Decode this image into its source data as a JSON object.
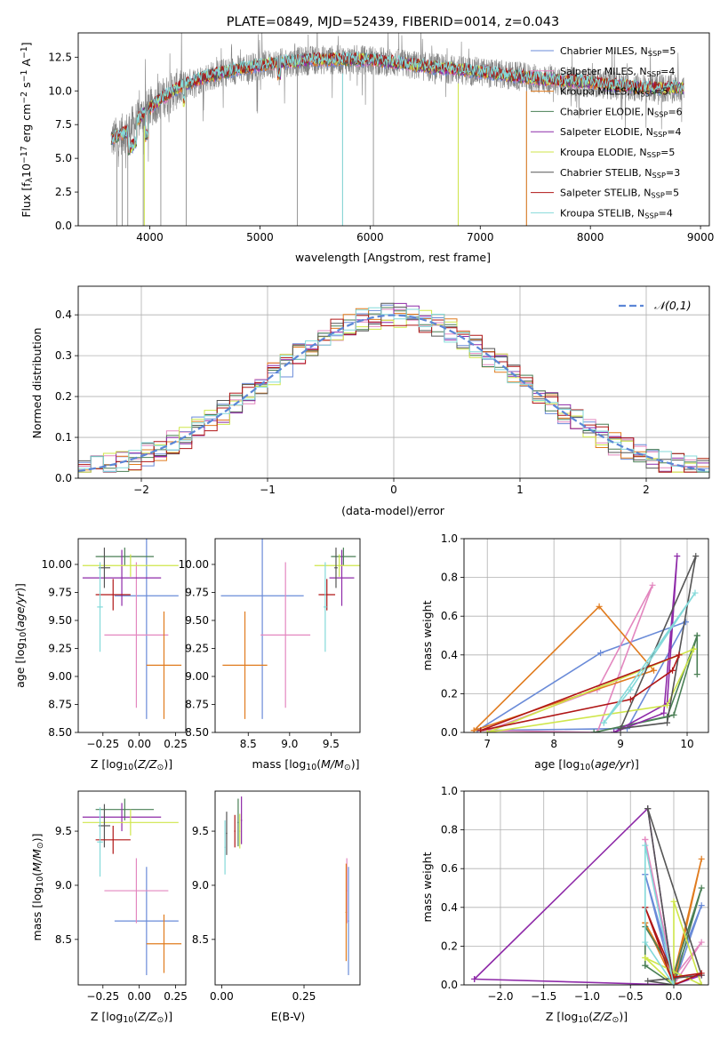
{
  "title": "PLATE=0849, MJD=52439, FIBERID=0014, z=0.043",
  "colors": {
    "Chabrier MILES": "#6a8bd8",
    "Salpeter MILES": "#e387bf",
    "Kroupa MILES": "#e07b1e",
    "Chabrier ELODIE": "#4a7f55",
    "Salpeter ELODIE": "#8e2aa8",
    "Kroupa ELODIE": "#cfe64a",
    "Chabrier STELIB": "#555555",
    "Salpeter STELIB": "#b01616",
    "Kroupa STELIB": "#84dada",
    "data": "#808080",
    "normal": "#5b86d6"
  },
  "chart_data": [
    {
      "id": "spectrum",
      "type": "line",
      "xlabel": "wavelength [Angstrom, rest frame]",
      "ylabel": "Flux [f",
      "xlim": [
        3350,
        9080
      ],
      "ylim": [
        0,
        14.3
      ],
      "xticks": [
        4000,
        5000,
        6000,
        7000,
        8000,
        9000
      ],
      "yticks": [
        0.0,
        2.5,
        5.0,
        7.5,
        10.0,
        12.5
      ],
      "continuum": {
        "x": [
          3650,
          3800,
          3950,
          4100,
          4300,
          4500,
          4800,
          5100,
          5500,
          6000,
          6500,
          7000,
          7500,
          8000,
          8500,
          8850
        ],
        "y": [
          6.4,
          7.0,
          8.4,
          9.4,
          10.4,
          11.0,
          11.6,
          12.0,
          12.3,
          12.3,
          11.8,
          11.4,
          10.9,
          10.6,
          10.2,
          10.2
        ]
      },
      "legend": [
        {
          "name": "Chabrier MILES",
          "nssp": 5
        },
        {
          "name": "Salpeter MILES",
          "nssp": 4
        },
        {
          "name": "Kroupa MILES",
          "nssp": 5
        },
        {
          "name": "Chabrier ELODIE",
          "nssp": 6
        },
        {
          "name": "Salpeter ELODIE",
          "nssp": 4
        },
        {
          "name": "Kroupa ELODIE",
          "nssp": 5
        },
        {
          "name": "Chabrier STELIB",
          "nssp": 3
        },
        {
          "name": "Salpeter STELIB",
          "nssp": 5
        },
        {
          "name": "Kroupa STELIB",
          "nssp": 4
        }
      ]
    },
    {
      "id": "residuals",
      "type": "line",
      "xlabel": "(data-model)/error",
      "ylabel": "Normed distribution",
      "xlim": [
        -2.5,
        2.5
      ],
      "ylim": [
        0,
        0.47
      ],
      "xticks": [
        -2,
        -1,
        0,
        1,
        2
      ],
      "yticks": [
        0.0,
        0.1,
        0.2,
        0.3,
        0.4
      ],
      "legend": "𝒩(0,1)",
      "grid": true
    },
    {
      "id": "age-vs-Z",
      "type": "scatter",
      "xlabel": "Z [log10(Z/Z⊙)]",
      "ylabel": "age  [log10(age/yr)]",
      "xlim": [
        -0.42,
        0.32
      ],
      "ylim": [
        8.5,
        10.23
      ],
      "xticks": [
        -0.25,
        0.0,
        0.25
      ],
      "yticks": [
        8.5,
        8.75,
        9.0,
        9.25,
        9.5,
        9.75,
        10.0
      ],
      "points": [
        {
          "s": "Chabrier MILES",
          "x": 0.05,
          "y": 9.72,
          "xe": 0.22,
          "ye": 1.1
        },
        {
          "s": "Salpeter MILES",
          "x": -0.02,
          "y": 9.37,
          "xe": 0.22,
          "ye": 0.65
        },
        {
          "s": "Kroupa MILES",
          "x": 0.17,
          "y": 9.1,
          "xe": 0.12,
          "ye": 0.48
        },
        {
          "s": "Chabrier ELODIE",
          "x": -0.1,
          "y": 10.07,
          "xe": 0.2,
          "ye": 0.08
        },
        {
          "s": "Salpeter ELODIE",
          "x": -0.12,
          "y": 9.88,
          "xe": 0.27,
          "ye": 0.25
        },
        {
          "s": "Kroupa ELODIE",
          "x": -0.06,
          "y": 9.99,
          "xe": 0.33,
          "ye": 0.1
        },
        {
          "s": "Chabrier STELIB",
          "x": -0.24,
          "y": 9.97,
          "xe": 0.04,
          "ye": 0.18
        },
        {
          "s": "Salpeter STELIB",
          "x": -0.18,
          "y": 9.73,
          "xe": 0.12,
          "ye": 0.14
        },
        {
          "s": "Kroupa STELIB",
          "x": -0.27,
          "y": 9.62,
          "xe": 0.02,
          "ye": 0.4
        }
      ]
    },
    {
      "id": "age-vs-mass",
      "type": "scatter",
      "xlabel": "mass [log10(M/M⊙)]",
      "xlim": [
        8.1,
        9.85
      ],
      "ylim": [
        8.5,
        10.23
      ],
      "xticks": [
        8.5,
        9.0,
        9.5
      ],
      "yticks": [
        8.5,
        8.75,
        9.0,
        9.25,
        9.5,
        9.75,
        10.0
      ],
      "points": [
        {
          "s": "Chabrier MILES",
          "x": 8.67,
          "y": 9.72,
          "xe": 0.5,
          "ye": 1.1
        },
        {
          "s": "Salpeter MILES",
          "x": 8.95,
          "y": 9.37,
          "xe": 0.3,
          "ye": 0.65
        },
        {
          "s": "Kroupa MILES",
          "x": 8.46,
          "y": 9.1,
          "xe": 0.27,
          "ye": 0.48
        },
        {
          "s": "Chabrier ELODIE",
          "x": 9.65,
          "y": 10.07,
          "xe": 0.15,
          "ye": 0.08
        },
        {
          "s": "Salpeter ELODIE",
          "x": 9.63,
          "y": 9.88,
          "xe": 0.15,
          "ye": 0.25
        },
        {
          "s": "Kroupa ELODIE",
          "x": 9.6,
          "y": 9.99,
          "xe": 0.3,
          "ye": 0.1
        },
        {
          "s": "Chabrier STELIB",
          "x": 9.56,
          "y": 9.97,
          "xe": 0.02,
          "ye": 0.18
        },
        {
          "s": "Salpeter STELIB",
          "x": 9.45,
          "y": 9.73,
          "xe": 0.1,
          "ye": 0.14
        },
        {
          "s": "Kroupa STELIB",
          "x": 9.43,
          "y": 9.62,
          "xe": 0.02,
          "ye": 0.4
        }
      ]
    },
    {
      "id": "weight-vs-age",
      "type": "line",
      "xlabel": "age  [log10(age/yr)]",
      "ylabel": "mass weight",
      "xlim": [
        6.65,
        10.32
      ],
      "ylim": [
        0,
        1.0
      ],
      "xticks": [
        7,
        8,
        9,
        10
      ],
      "yticks": [
        0.0,
        0.2,
        0.4,
        0.6,
        0.8,
        1.0
      ],
      "grid": true,
      "series": [
        {
          "s": "Chabrier MILES",
          "x": [
            6.85,
            8.7,
            9.98,
            9.1,
            6.85
          ],
          "y": [
            0.01,
            0.41,
            0.57,
            0.02,
            0.01
          ]
        },
        {
          "s": "Salpeter MILES",
          "x": [
            7.0,
            8.65,
            9.48,
            8.65,
            7.0
          ],
          "y": [
            0.01,
            0.22,
            0.76,
            0.0,
            0.01
          ]
        },
        {
          "s": "Kroupa MILES",
          "x": [
            6.8,
            8.68,
            9.5,
            6.8
          ],
          "y": [
            0.01,
            0.65,
            0.32,
            0.01
          ]
        },
        {
          "s": "Chabrier ELODIE",
          "x": [
            8.6,
            9.7,
            10.15,
            10.15,
            10.15,
            9.8,
            8.6
          ],
          "y": [
            0.0,
            0.08,
            0.5,
            0.3,
            0.5,
            0.09,
            0.0
          ]
        },
        {
          "s": "Salpeter ELODIE",
          "x": [
            8.9,
            9.65,
            9.85,
            9.7,
            8.9
          ],
          "y": [
            0.0,
            0.1,
            0.91,
            0.15,
            0.0
          ]
        },
        {
          "s": "Kroupa ELODIE",
          "x": [
            7.0,
            9.7,
            10.1,
            10.1,
            7.0
          ],
          "y": [
            0.0,
            0.14,
            0.43,
            0.43,
            0.0
          ]
        },
        {
          "s": "Chabrier STELIB",
          "x": [
            9.0,
            9.7,
            10.13,
            9.0
          ],
          "y": [
            0.02,
            0.05,
            0.91,
            0.02
          ]
        },
        {
          "s": "Salpeter STELIB",
          "x": [
            6.9,
            9.15,
            9.78,
            9.88,
            6.9
          ],
          "y": [
            0.01,
            0.17,
            0.32,
            0.4,
            0.01
          ]
        },
        {
          "s": "Kroupa STELIB",
          "x": [
            8.75,
            9.15,
            10.12,
            8.75
          ],
          "y": [
            0.05,
            0.22,
            0.72,
            0.05
          ]
        }
      ]
    },
    {
      "id": "mass-vs-Z",
      "type": "scatter",
      "xlabel": "Z [log10(Z/Z⊙)]",
      "ylabel": "mass [log10(M/M⊙)]",
      "xlim": [
        -0.42,
        0.32
      ],
      "ylim": [
        8.08,
        9.87
      ],
      "xticks": [
        -0.25,
        0.0,
        0.25
      ],
      "yticks": [
        8.5,
        9.0,
        9.5
      ],
      "points": [
        {
          "s": "Chabrier MILES",
          "x": 0.05,
          "y": 8.67,
          "xe": 0.22,
          "ye": 0.5
        },
        {
          "s": "Salpeter MILES",
          "x": -0.02,
          "y": 8.95,
          "xe": 0.22,
          "ye": 0.3
        },
        {
          "s": "Kroupa MILES",
          "x": 0.17,
          "y": 8.46,
          "xe": 0.12,
          "ye": 0.27
        },
        {
          "s": "Chabrier ELODIE",
          "x": -0.1,
          "y": 9.7,
          "xe": 0.2,
          "ye": 0.1
        },
        {
          "s": "Salpeter ELODIE",
          "x": -0.12,
          "y": 9.63,
          "xe": 0.27,
          "ye": 0.13
        },
        {
          "s": "Kroupa ELODIE",
          "x": -0.06,
          "y": 9.58,
          "xe": 0.33,
          "ye": 0.12
        },
        {
          "s": "Chabrier STELIB",
          "x": -0.24,
          "y": 9.55,
          "xe": 0.04,
          "ye": 0.2
        },
        {
          "s": "Salpeter STELIB",
          "x": -0.18,
          "y": 9.42,
          "xe": 0.12,
          "ye": 0.13
        },
        {
          "s": "Kroupa STELIB",
          "x": -0.27,
          "y": 9.4,
          "xe": 0.02,
          "ye": 0.32
        }
      ]
    },
    {
      "id": "mass-vs-EBV",
      "type": "scatter",
      "xlabel": "E(B-V)",
      "xlim": [
        -0.02,
        0.42
      ],
      "ylim": [
        8.08,
        9.87
      ],
      "xticks": [
        0.0,
        0.25
      ],
      "yticks": [
        8.5,
        9.0,
        9.5
      ],
      "points": [
        {
          "s": "Chabrier MILES",
          "x": 0.385,
          "y": 8.67,
          "xe": 0.002,
          "ye": 0.5
        },
        {
          "s": "Salpeter MILES",
          "x": 0.38,
          "y": 8.95,
          "xe": 0.002,
          "ye": 0.3
        },
        {
          "s": "Kroupa MILES",
          "x": 0.378,
          "y": 8.75,
          "xe": 0.002,
          "ye": 0.45
        },
        {
          "s": "Chabrier ELODIE",
          "x": 0.05,
          "y": 9.58,
          "xe": 0.002,
          "ye": 0.22
        },
        {
          "s": "Salpeter ELODIE",
          "x": 0.06,
          "y": 9.6,
          "xe": 0.002,
          "ye": 0.22
        },
        {
          "s": "Kroupa ELODIE",
          "x": 0.055,
          "y": 9.5,
          "xe": 0.002,
          "ye": 0.16
        },
        {
          "s": "Chabrier STELIB",
          "x": 0.015,
          "y": 9.48,
          "xe": 0.002,
          "ye": 0.2
        },
        {
          "s": "Salpeter STELIB",
          "x": 0.04,
          "y": 9.5,
          "xe": 0.002,
          "ye": 0.15
        },
        {
          "s": "Kroupa STELIB",
          "x": 0.01,
          "y": 9.35,
          "xe": 0.002,
          "ye": 0.25
        }
      ]
    },
    {
      "id": "weight-vs-Z",
      "type": "line",
      "xlabel": "Z [log10(Z/Z⊙)]",
      "ylabel": "mass weight",
      "xlim": [
        -2.42,
        0.4
      ],
      "ylim": [
        0,
        1.0
      ],
      "xticks": [
        -2.0,
        -1.5,
        -1.0,
        -0.5,
        0.0
      ],
      "yticks": [
        0.0,
        0.2,
        0.4,
        0.6,
        0.8,
        1.0
      ],
      "grid": true,
      "series": [
        {
          "s": "Chabrier MILES",
          "x": [
            -0.33,
            0.0,
            0.32,
            0.0,
            -0.33
          ],
          "y": [
            0.57,
            0.05,
            0.41,
            0.0,
            0.57
          ]
        },
        {
          "s": "Salpeter MILES",
          "x": [
            -0.33,
            0.0,
            0.32,
            0.0,
            -0.33
          ],
          "y": [
            0.75,
            0.04,
            0.22,
            0.0,
            0.75
          ]
        },
        {
          "s": "Kroupa MILES",
          "x": [
            -0.33,
            0.0,
            0.32,
            0.0,
            -0.33
          ],
          "y": [
            0.32,
            0.05,
            0.65,
            0.01,
            0.32
          ]
        },
        {
          "s": "Chabrier ELODIE",
          "x": [
            -0.33,
            -0.33,
            0.0,
            0.32,
            0.0,
            -0.33
          ],
          "y": [
            0.1,
            0.3,
            0.06,
            0.5,
            0.0,
            0.1
          ]
        },
        {
          "s": "Salpeter ELODIE",
          "x": [
            -2.3,
            -0.3,
            0.0,
            0.32,
            0.0,
            -2.3
          ],
          "y": [
            0.03,
            0.91,
            0.0,
            0.05,
            0.0,
            0.03
          ]
        },
        {
          "s": "Kroupa ELODIE",
          "x": [
            -0.33,
            0.0,
            0.0,
            0.32,
            -0.33
          ],
          "y": [
            0.14,
            0.0,
            0.43,
            0.0,
            0.14
          ]
        },
        {
          "s": "Chabrier STELIB",
          "x": [
            -0.3,
            0.0,
            -0.3,
            0.32,
            -0.3
          ],
          "y": [
            0.91,
            0.0,
            0.02,
            0.05,
            0.91
          ]
        },
        {
          "s": "Salpeter STELIB",
          "x": [
            -0.33,
            0.0,
            0.32,
            0.0,
            -0.33
          ],
          "y": [
            0.4,
            0.04,
            0.06,
            0.0,
            0.4
          ]
        },
        {
          "s": "Kroupa STELIB",
          "x": [
            -0.33,
            0.0,
            -0.33,
            -0.33
          ],
          "y": [
            0.72,
            0.0,
            0.22,
            0.72
          ]
        }
      ]
    }
  ]
}
